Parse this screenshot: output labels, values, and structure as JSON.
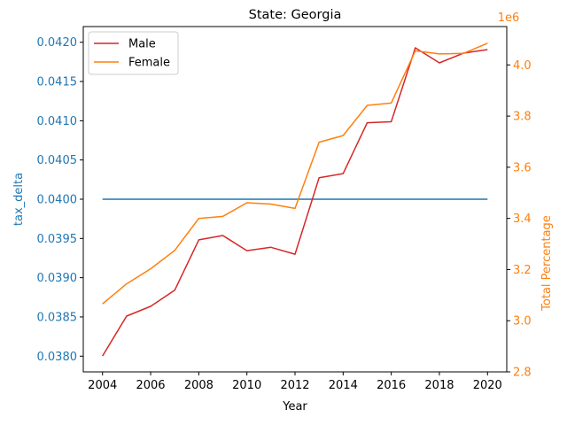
{
  "chart_data": {
    "type": "line",
    "title": "State: Georgia",
    "xlabel": "Year",
    "x": [
      2004,
      2005,
      2006,
      2007,
      2008,
      2009,
      2010,
      2011,
      2012,
      2013,
      2014,
      2015,
      2016,
      2017,
      2018,
      2019,
      2020
    ],
    "xlim": [
      2003.2,
      2020.8
    ],
    "xticks": [
      "2004",
      "2006",
      "2008",
      "2010",
      "2012",
      "2014",
      "2016",
      "2018",
      "2020"
    ],
    "left_axis": {
      "label": "tax_delta",
      "color": "#1f77b4",
      "ylim": [
        0.0378,
        0.0422
      ],
      "ticks": [
        "0.0380",
        "0.0385",
        "0.0390",
        "0.0395",
        "0.0400",
        "0.0405",
        "0.0410",
        "0.0415",
        "0.0420"
      ]
    },
    "right_axis": {
      "label": "Total Percentage",
      "color": "#ff7f0e",
      "offset_text": "1e6",
      "ylim": [
        2.8,
        4.15
      ],
      "ticks": [
        "2.8",
        "3.0",
        "3.2",
        "3.4",
        "3.6",
        "3.8",
        "4.0"
      ]
    },
    "series": [
      {
        "axis": "left",
        "color": "#1f77b4",
        "values": [
          0.04,
          0.04,
          0.04,
          0.04,
          0.04,
          0.04,
          0.04,
          0.04,
          0.04,
          0.04,
          0.04,
          0.04,
          0.04,
          0.04,
          0.04,
          0.04,
          0.04
        ]
      },
      {
        "name": "Male",
        "axis": "right",
        "color": "#d62728",
        "values": [
          2.862,
          3.018,
          3.056,
          3.119,
          3.316,
          3.333,
          3.274,
          3.287,
          3.26,
          3.559,
          3.575,
          3.774,
          3.778,
          4.067,
          4.008,
          4.046,
          4.06
        ]
      },
      {
        "name": "Female",
        "axis": "right",
        "color": "#ff7f0e",
        "values": [
          3.066,
          3.144,
          3.203,
          3.275,
          3.4,
          3.408,
          3.461,
          3.456,
          3.439,
          3.698,
          3.724,
          3.842,
          3.851,
          4.055,
          4.043,
          4.045,
          4.085
        ]
      }
    ],
    "legend": {
      "placement": "top-left",
      "entries": [
        "Male",
        "Female"
      ]
    },
    "grid": false
  }
}
